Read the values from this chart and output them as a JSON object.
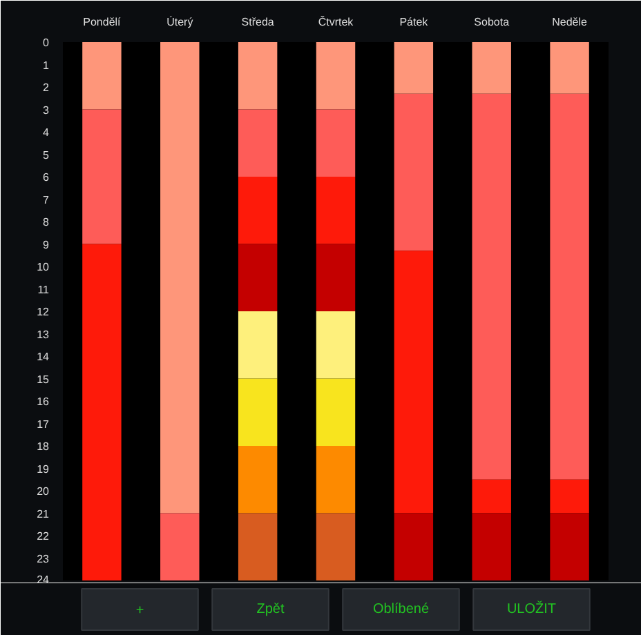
{
  "chart_data": {
    "type": "bar",
    "stacked": true,
    "categories": [
      "Pondělí",
      "Úterý",
      "Středa",
      "Čtvrtek",
      "Pátek",
      "Sobota",
      "Neděle"
    ],
    "series": [
      {
        "values": [
          3,
          21,
          3,
          3,
          2.3,
          2.3,
          2.3
        ],
        "colors": [
          "#fe967a",
          "#fe967a",
          "#fe967a",
          "#fe967a",
          "#fe967a",
          "#fe967a",
          "#fe967a"
        ]
      },
      {
        "values": [
          6,
          3,
          3,
          3,
          7,
          17.2,
          17.2
        ],
        "colors": [
          "#fe5c58",
          "#fe5c58",
          "#fe5c58",
          "#fe5c58",
          "#fe5c58",
          "#fe5c58",
          "#fe5c58"
        ]
      },
      {
        "values": [
          15,
          null,
          3,
          3,
          11.7,
          1.5,
          1.5
        ],
        "colors": [
          "#fe1a0a",
          null,
          "#fe1a0a",
          "#fe1a0a",
          "#fe1a0a",
          "#fe1a0a",
          "#fe1a0a"
        ]
      },
      {
        "values": [
          null,
          null,
          3,
          3,
          3,
          3,
          3
        ],
        "colors": [
          null,
          null,
          "#c40000",
          "#c40000",
          "#c40000",
          "#c40000",
          "#c40000"
        ]
      },
      {
        "values": [
          null,
          null,
          3,
          3,
          null,
          null,
          null
        ],
        "colors": [
          null,
          null,
          "#fef07c",
          "#fef07c",
          null,
          null,
          null
        ]
      },
      {
        "values": [
          null,
          null,
          3,
          3,
          null,
          null,
          null
        ],
        "colors": [
          null,
          null,
          "#f8e41e",
          "#f8e41e",
          null,
          null,
          null
        ]
      },
      {
        "values": [
          null,
          null,
          3,
          3,
          null,
          null,
          null
        ],
        "colors": [
          null,
          null,
          "#fd8a00",
          "#fd8a00",
          null,
          null,
          null
        ]
      },
      {
        "values": [
          null,
          null,
          3,
          3,
          null,
          null,
          null
        ],
        "colors": [
          null,
          null,
          "#d85c20",
          "#d85c20",
          null,
          null,
          null
        ]
      }
    ],
    "ylim": [
      24,
      0
    ],
    "yticks": [
      0,
      1,
      2,
      3,
      4,
      5,
      6,
      7,
      8,
      9,
      10,
      11,
      12,
      13,
      14,
      15,
      16,
      17,
      18,
      19,
      20,
      21,
      22,
      23,
      24
    ],
    "annotations": [
      "+",
      "Zpět",
      "Oblíbené",
      "ULOŽIT"
    ]
  }
}
